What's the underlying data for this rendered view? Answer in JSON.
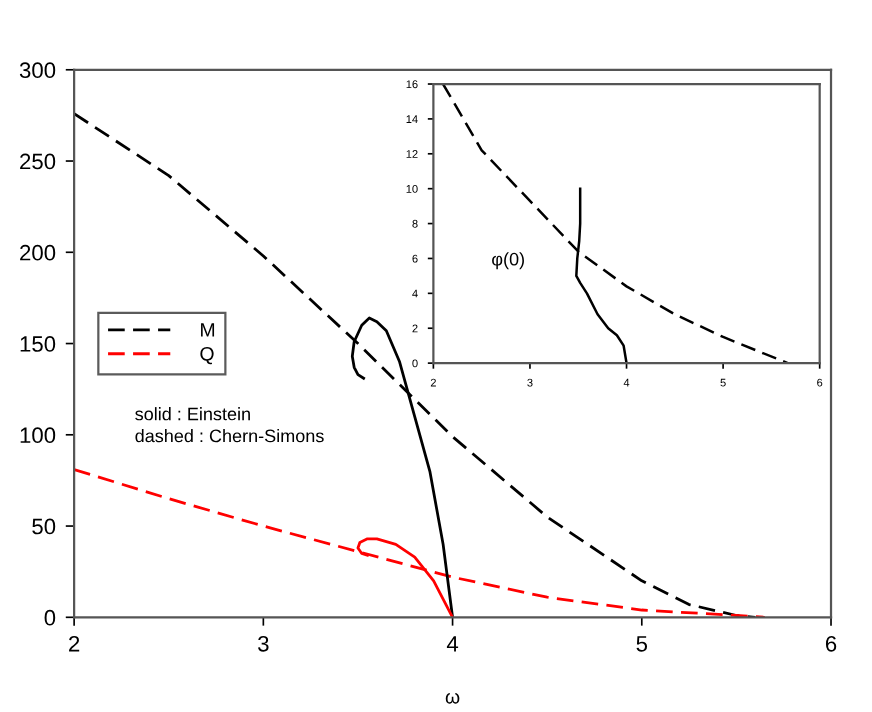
{
  "chart_data": [
    {
      "type": "line",
      "xlabel": "ω",
      "xlim": [
        2,
        6
      ],
      "ylim": [
        0,
        300
      ],
      "xticks": [
        2,
        3,
        4,
        5,
        6
      ],
      "yticks": [
        0,
        50,
        100,
        150,
        200,
        250,
        300
      ],
      "grid": false,
      "legend": "left",
      "marker": "none",
      "annotations": [
        "solid : Einstein",
        "dashed : Chern-Simons"
      ],
      "series": [
        {
          "name": "M",
          "color": "#000000",
          "line_style": "dashed",
          "x": [
            2,
            2.5,
            3,
            3.5,
            4,
            4.5,
            5,
            5.25,
            5.5,
            5.6
          ],
          "values": [
            276,
            242,
            198,
            150,
            99,
            55,
            20,
            7,
            1,
            0
          ]
        },
        {
          "name": "Q",
          "color": "#ff0000",
          "line_style": "dashed",
          "x": [
            2,
            2.5,
            3,
            3.5,
            4,
            4.5,
            5,
            5.5,
            5.65
          ],
          "values": [
            81,
            65,
            50,
            36,
            22,
            11,
            4,
            1,
            0
          ]
        },
        {
          "color": "#000000",
          "line_style": "solid",
          "x": [
            4,
            3.95,
            3.88,
            3.8,
            3.72,
            3.65,
            3.6,
            3.56,
            3.52,
            3.48,
            3.47,
            3.48,
            3.5,
            3.53
          ],
          "values": [
            0,
            40,
            80,
            110,
            140,
            157,
            162,
            164,
            160,
            151,
            143,
            137,
            133,
            131
          ]
        },
        {
          "color": "#ff0000",
          "line_style": "solid",
          "x": [
            4,
            3.9,
            3.8,
            3.7,
            3.6,
            3.55,
            3.51,
            3.5,
            3.52,
            3.55
          ],
          "values": [
            0,
            20,
            33,
            40,
            43,
            43,
            41,
            38,
            35,
            34
          ]
        }
      ]
    },
    {
      "type": "line",
      "xlim": [
        2,
        6
      ],
      "ylim": [
        0,
        16
      ],
      "xticks": [
        2,
        3,
        4,
        5,
        6
      ],
      "yticks": [
        0,
        2,
        4,
        6,
        8,
        10,
        12,
        14,
        16
      ],
      "grid": false,
      "marker": "none",
      "annotations": [
        "φ(0)"
      ],
      "series": [
        {
          "color": "#000000",
          "line_style": "dashed",
          "x": [
            2.1,
            2.5,
            3,
            3.5,
            4,
            4.5,
            5,
            5.4,
            5.67
          ],
          "values": [
            16,
            12.2,
            9.3,
            6.4,
            4.4,
            2.8,
            1.5,
            0.6,
            0
          ]
        },
        {
          "color": "#000000",
          "line_style": "solid",
          "x": [
            4,
            3.97,
            3.9,
            3.81,
            3.7,
            3.59,
            3.52,
            3.48,
            3.49,
            3.51,
            3.52,
            3.52
          ],
          "values": [
            0,
            1,
            1.6,
            2,
            2.8,
            4,
            4.6,
            5,
            6,
            7,
            8,
            10
          ]
        }
      ]
    }
  ]
}
